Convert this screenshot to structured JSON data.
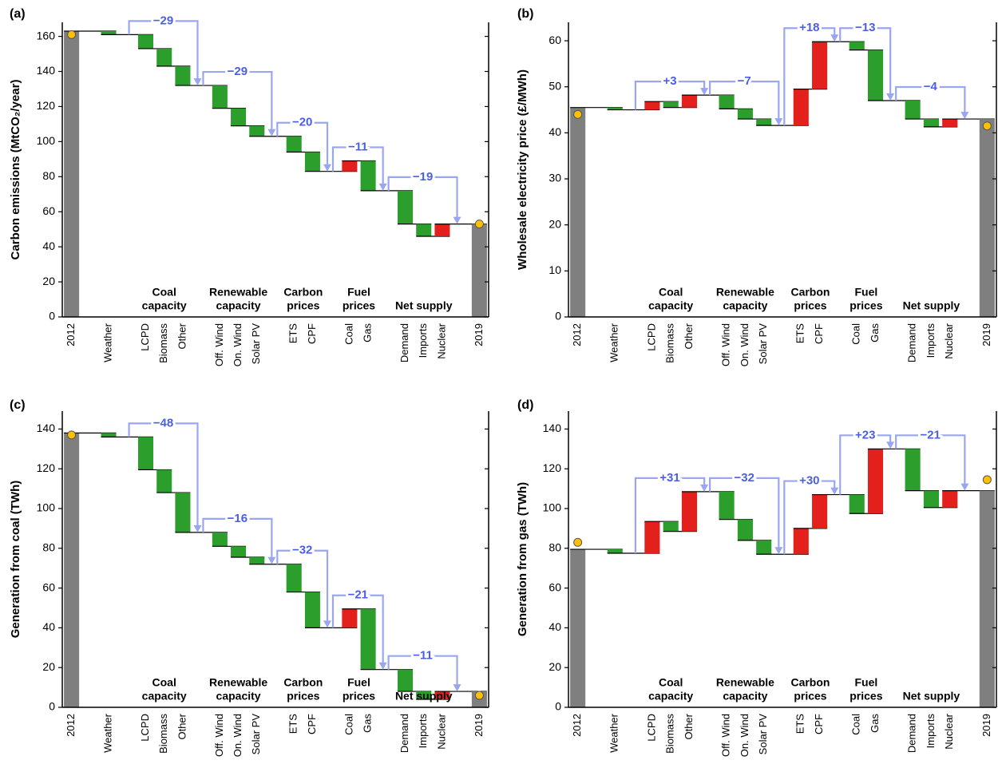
{
  "chart_data": [
    {
      "type": "waterfall",
      "label": "(a)",
      "ylabel": "Carbon emissions (MtCO₂/year)",
      "ylim": [
        0,
        168
      ],
      "yticks": [
        0,
        20,
        40,
        60,
        80,
        100,
        120,
        140,
        160
      ],
      "colors": {
        "increase": "#e3201b",
        "decrease": "#2b9e2b",
        "total": "#7f7f7f",
        "observed": "#ffc000",
        "arrow": "#9aa6f2",
        "change_label": "#4b5ee4"
      },
      "start": {
        "category": "2012",
        "value": 163,
        "observed": 161
      },
      "groups": [
        {
          "categories": [
            "Weather"
          ],
          "values": [
            -2
          ]
        },
        {
          "name": [
            "Coal",
            "capacity"
          ],
          "change": {
            "value": -29,
            "label": "−29"
          },
          "categories": [
            "LCPD",
            "Biomass",
            "Other"
          ],
          "values": [
            -8,
            -10,
            -11
          ]
        },
        {
          "name": [
            "Renewable",
            "capacity"
          ],
          "change": {
            "value": -29,
            "label": "−29"
          },
          "categories": [
            "Off. Wind",
            "On. Wind",
            "Solar PV"
          ],
          "values": [
            -13,
            -10,
            -6
          ]
        },
        {
          "name": [
            "Carbon",
            "prices"
          ],
          "change": {
            "value": -20,
            "label": "−20"
          },
          "categories": [
            "ETS",
            "CPF"
          ],
          "values": [
            -9,
            -11
          ]
        },
        {
          "name": [
            "Fuel",
            "prices"
          ],
          "change": {
            "value": -11,
            "label": "−11"
          },
          "categories": [
            "Coal",
            "Gas"
          ],
          "values": [
            6,
            -17
          ]
        },
        {
          "name": [
            "Net supply"
          ],
          "change": {
            "value": -19,
            "label": "−19"
          },
          "categories": [
            "Demand",
            "Imports",
            "Nuclear"
          ],
          "values": [
            -19,
            -7,
            7
          ]
        }
      ],
      "end": {
        "category": "2019",
        "value": 53,
        "observed": 53
      }
    },
    {
      "type": "waterfall",
      "label": "(b)",
      "ylabel": "Wholesale electricity price (£/MWh)",
      "ylim": [
        0,
        64
      ],
      "yticks": [
        0,
        10,
        20,
        30,
        40,
        50,
        60
      ],
      "colors": {
        "increase": "#e3201b",
        "decrease": "#2b9e2b",
        "total": "#7f7f7f",
        "observed": "#ffc000",
        "arrow": "#9aa6f2",
        "change_label": "#4b5ee4"
      },
      "start": {
        "category": "2012",
        "value": 45.5,
        "observed": 44
      },
      "groups": [
        {
          "categories": [
            "Weather"
          ],
          "values": [
            -0.5
          ]
        },
        {
          "name": [
            "Coal",
            "capacity"
          ],
          "change": {
            "value": 3,
            "label": "+3"
          },
          "categories": [
            "LCPD",
            "Biomass",
            "Other"
          ],
          "values": [
            1.8,
            -1.3,
            2.7
          ]
        },
        {
          "name": [
            "Renewable",
            "capacity"
          ],
          "change": {
            "value": -7,
            "label": "−7"
          },
          "categories": [
            "Off. Wind",
            "On. Wind",
            "Solar PV"
          ],
          "values": [
            -3,
            -2.2,
            -1.4
          ]
        },
        {
          "name": [
            "Carbon",
            "prices"
          ],
          "change": {
            "value": 18,
            "label": "+18"
          },
          "categories": [
            "ETS",
            "CPF"
          ],
          "values": [
            7.9,
            10.3
          ]
        },
        {
          "name": [
            "Fuel",
            "prices"
          ],
          "change": {
            "value": -13,
            "label": "−13"
          },
          "categories": [
            "Coal",
            "Gas"
          ],
          "values": [
            -1.8,
            -11
          ]
        },
        {
          "name": [
            "Net supply"
          ],
          "change": {
            "value": -4,
            "label": "−4"
          },
          "categories": [
            "Demand",
            "Imports",
            "Nuclear"
          ],
          "values": [
            -4,
            -1.7,
            1.7
          ]
        }
      ],
      "end": {
        "category": "2019",
        "value": 43,
        "observed": 41.5
      }
    },
    {
      "type": "waterfall",
      "label": "(c)",
      "ylabel": "Generation from coal (TWh)",
      "ylim": [
        0,
        149
      ],
      "yticks": [
        0,
        20,
        40,
        60,
        80,
        100,
        120,
        140
      ],
      "colors": {
        "increase": "#e3201b",
        "decrease": "#2b9e2b",
        "total": "#7f7f7f",
        "observed": "#ffc000",
        "arrow": "#9aa6f2",
        "change_label": "#4b5ee4"
      },
      "start": {
        "category": "2012",
        "value": 138,
        "observed": 137
      },
      "groups": [
        {
          "categories": [
            "Weather"
          ],
          "values": [
            -2
          ]
        },
        {
          "name": [
            "Coal",
            "capacity"
          ],
          "change": {
            "value": -48,
            "label": "−48"
          },
          "categories": [
            "LCPD",
            "Biomass",
            "Other"
          ],
          "values": [
            -16.5,
            -11.5,
            -20
          ]
        },
        {
          "name": [
            "Renewable",
            "capacity"
          ],
          "change": {
            "value": -16,
            "label": "−16"
          },
          "categories": [
            "Off. Wind",
            "On. Wind",
            "Solar PV"
          ],
          "values": [
            -7,
            -5.5,
            -3.5
          ]
        },
        {
          "name": [
            "Carbon",
            "prices"
          ],
          "change": {
            "value": -32,
            "label": "−32"
          },
          "categories": [
            "ETS",
            "CPF"
          ],
          "values": [
            -14,
            -18
          ]
        },
        {
          "name": [
            "Fuel",
            "prices"
          ],
          "change": {
            "value": -21,
            "label": "−21"
          },
          "categories": [
            "Coal",
            "Gas"
          ],
          "values": [
            9.5,
            -30.5
          ]
        },
        {
          "name": [
            "Net supply"
          ],
          "change": {
            "value": -11,
            "label": "−11"
          },
          "categories": [
            "Demand",
            "Imports",
            "Nuclear"
          ],
          "values": [
            -11,
            -4,
            4
          ]
        }
      ],
      "end": {
        "category": "2019",
        "value": 8,
        "observed": 6
      }
    },
    {
      "type": "waterfall",
      "label": "(d)",
      "ylabel": "Generation from gas (TWh)",
      "ylim": [
        0,
        149
      ],
      "yticks": [
        0,
        20,
        40,
        60,
        80,
        100,
        120,
        140
      ],
      "colors": {
        "increase": "#e3201b",
        "decrease": "#2b9e2b",
        "total": "#7f7f7f",
        "observed": "#ffc000",
        "arrow": "#9aa6f2",
        "change_label": "#4b5ee4"
      },
      "start": {
        "category": "2012",
        "value": 79.5,
        "observed": 83
      },
      "groups": [
        {
          "categories": [
            "Weather"
          ],
          "values": [
            -2
          ]
        },
        {
          "name": [
            "Coal",
            "capacity"
          ],
          "change": {
            "value": 31,
            "label": "+31"
          },
          "categories": [
            "LCPD",
            "Biomass",
            "Other"
          ],
          "values": [
            16,
            -5,
            20
          ]
        },
        {
          "name": [
            "Renewable",
            "capacity"
          ],
          "change": {
            "value": -32,
            "label": "−32"
          },
          "categories": [
            "Off. Wind",
            "On. Wind",
            "Solar PV"
          ],
          "values": [
            -14,
            -10.5,
            -7
          ]
        },
        {
          "name": [
            "Carbon",
            "prices"
          ],
          "change": {
            "value": 30,
            "label": "+30"
          },
          "categories": [
            "ETS",
            "CPF"
          ],
          "values": [
            13,
            17
          ]
        },
        {
          "name": [
            "Fuel",
            "prices"
          ],
          "change": {
            "value": 23,
            "label": "+23"
          },
          "categories": [
            "Coal",
            "Gas"
          ],
          "values": [
            -9.5,
            32.5
          ]
        },
        {
          "name": [
            "Net supply"
          ],
          "change": {
            "value": -21,
            "label": "−21"
          },
          "categories": [
            "Demand",
            "Imports",
            "Nuclear"
          ],
          "values": [
            -21,
            -8.5,
            8.5
          ]
        }
      ],
      "end": {
        "category": "2019",
        "value": 109,
        "observed": 114.5
      }
    }
  ]
}
